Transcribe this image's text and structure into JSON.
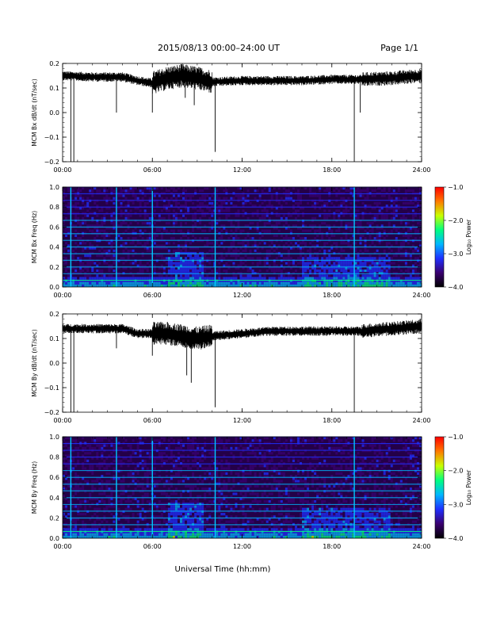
{
  "header": {
    "title": "2015/08/13  00:00–24:00 UT",
    "page": "Page 1/1"
  },
  "x_axis": {
    "label": "Universal Time (hh:mm)",
    "ticks": [
      "00:00",
      "06:00",
      "12:00",
      "18:00",
      "24:00"
    ]
  },
  "colorbar": {
    "label": "Log₁₀ Power",
    "ticks": [
      "−1.0",
      "−2.0",
      "−3.0",
      "−4.0"
    ],
    "range": [
      -4.0,
      -1.0
    ],
    "colors": [
      "#000000",
      "#3a0070",
      "#1f2fff",
      "#00b7ff",
      "#00ff80",
      "#c8ff00",
      "#ff7a00",
      "#ff0000"
    ]
  },
  "chart_data": [
    {
      "type": "line",
      "ylabel": "MCM Bx dB/dt (nT/sec)",
      "xlim": [
        0,
        24
      ],
      "ylim": [
        -0.2,
        0.2
      ],
      "yticks": [
        "0.2",
        "0.1",
        "0.0",
        "−0.1",
        "−0.2"
      ],
      "baseline": [
        [
          0,
          0.15
        ],
        [
          2,
          0.145
        ],
        [
          4,
          0.145
        ],
        [
          5,
          0.13
        ],
        [
          6,
          0.12
        ],
        [
          7,
          0.14
        ],
        [
          8,
          0.15
        ],
        [
          9,
          0.14
        ],
        [
          10,
          0.125
        ],
        [
          12,
          0.13
        ],
        [
          14,
          0.13
        ],
        [
          16,
          0.13
        ],
        [
          18,
          0.135
        ],
        [
          20,
          0.135
        ],
        [
          22,
          0.14
        ],
        [
          24,
          0.15
        ]
      ],
      "spikes": [
        [
          0.55,
          -0.2
        ],
        [
          0.75,
          -0.2
        ],
        [
          3.6,
          0.0
        ],
        [
          6.0,
          0.0
        ],
        [
          8.2,
          0.06
        ],
        [
          8.8,
          0.03
        ],
        [
          10.2,
          -0.16
        ],
        [
          19.5,
          -0.2
        ],
        [
          19.9,
          0.0
        ]
      ]
    },
    {
      "type": "heatmap",
      "ylabel": "MCM Bx Freq (Hz)",
      "xlim": [
        0,
        24
      ],
      "ylim": [
        0.0,
        1.0
      ],
      "yticks": [
        "1.0",
        "0.8",
        "0.6",
        "0.4",
        "0.2",
        "0.0"
      ],
      "harmonic_lines_hz": [
        0.067,
        0.133,
        0.2,
        0.267,
        0.333,
        0.4,
        0.467,
        0.533,
        0.6,
        0.667,
        0.733,
        0.8,
        0.867,
        0.933,
        1.0
      ],
      "vertical_lines_utc": [
        0.55,
        3.6,
        6.0,
        10.2,
        19.5
      ]
    },
    {
      "type": "line",
      "ylabel": "MCM By dB/dt (nT/sec)",
      "xlim": [
        0,
        24
      ],
      "ylim": [
        -0.2,
        0.2
      ],
      "yticks": [
        "0.2",
        "0.1",
        "0.0",
        "−0.1",
        "−0.2"
      ],
      "baseline": [
        [
          0,
          0.14
        ],
        [
          2,
          0.14
        ],
        [
          4,
          0.14
        ],
        [
          5,
          0.12
        ],
        [
          6,
          0.12
        ],
        [
          7,
          0.12
        ],
        [
          8,
          0.11
        ],
        [
          9,
          0.1
        ],
        [
          10,
          0.11
        ],
        [
          12,
          0.12
        ],
        [
          14,
          0.13
        ],
        [
          16,
          0.13
        ],
        [
          18,
          0.13
        ],
        [
          20,
          0.13
        ],
        [
          22,
          0.14
        ],
        [
          24,
          0.15
        ]
      ],
      "spikes": [
        [
          0.55,
          -0.2
        ],
        [
          0.75,
          -0.2
        ],
        [
          3.6,
          0.06
        ],
        [
          6.0,
          0.03
        ],
        [
          8.3,
          -0.05
        ],
        [
          8.6,
          -0.08
        ],
        [
          10.2,
          -0.18
        ],
        [
          19.5,
          -0.2
        ]
      ]
    },
    {
      "type": "heatmap",
      "ylabel": "MCM By Freq (Hz)",
      "xlim": [
        0,
        24
      ],
      "ylim": [
        0.0,
        1.0
      ],
      "yticks": [
        "1.0",
        "0.8",
        "0.6",
        "0.4",
        "0.2",
        "0.0"
      ],
      "harmonic_lines_hz": [
        0.067,
        0.133,
        0.2,
        0.267,
        0.333,
        0.4,
        0.467,
        0.533,
        0.6,
        0.667,
        0.733,
        0.8,
        0.867,
        0.933,
        1.0
      ],
      "vertical_lines_utc": [
        0.55,
        3.6,
        6.0,
        10.2,
        19.5
      ]
    }
  ]
}
